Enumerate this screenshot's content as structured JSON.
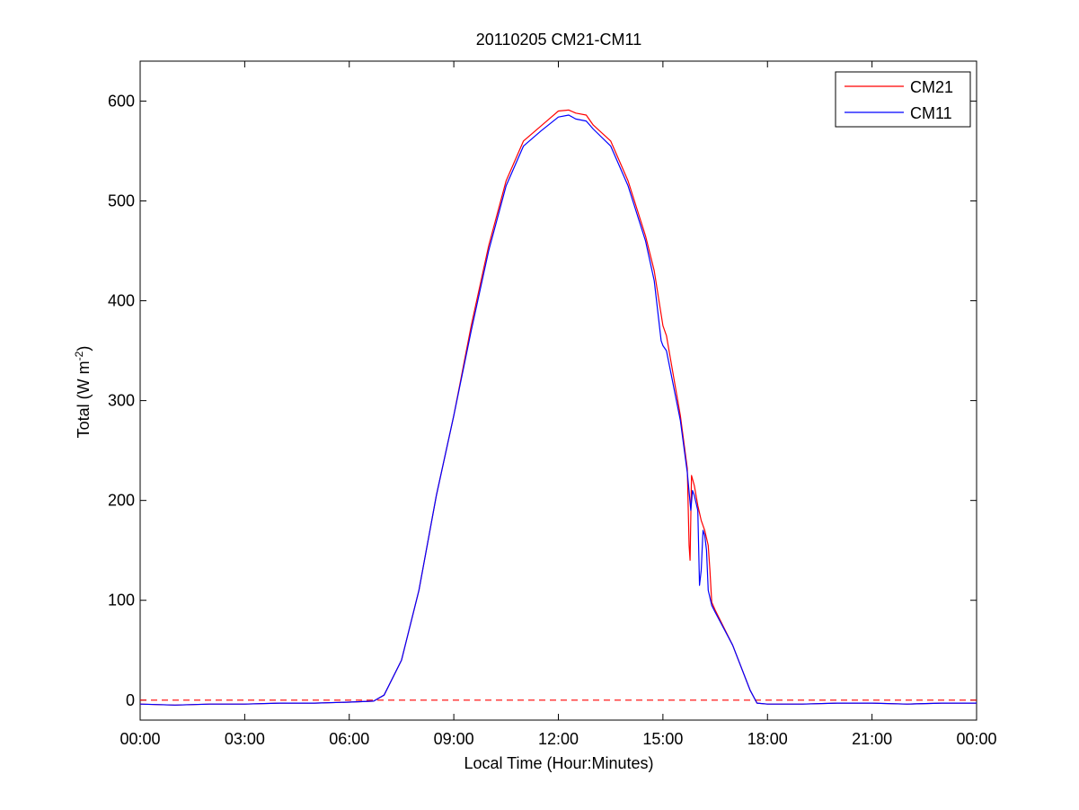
{
  "chart_data": {
    "type": "line",
    "title": "20110205 CM21-CM11",
    "xlabel": "Local Time (Hour:Minutes)",
    "ylabel_main": "Total (W m",
    "ylabel_sup": "-2",
    "ylabel_close": ")",
    "x_unit": "hours",
    "xlim": [
      0,
      24
    ],
    "ylim": [
      -20,
      640
    ],
    "x_ticks": [
      0,
      3,
      6,
      9,
      12,
      15,
      18,
      21,
      24
    ],
    "x_tick_labels": [
      "00:00",
      "03:00",
      "06:00",
      "09:00",
      "12:00",
      "15:00",
      "18:00",
      "21:00",
      "00:00"
    ],
    "y_ticks": [
      0,
      100,
      200,
      300,
      400,
      500,
      600
    ],
    "y_tick_labels": [
      "0",
      "100",
      "200",
      "300",
      "400",
      "500",
      "600"
    ],
    "grid": false,
    "legend_position": "top-right",
    "reference_line": {
      "y": 0,
      "color": "#ff0000",
      "style": "dashed"
    },
    "series": [
      {
        "name": "CM21",
        "color": "#ff0000",
        "points": [
          [
            0,
            -4
          ],
          [
            1,
            -5
          ],
          [
            2,
            -4
          ],
          [
            3,
            -4
          ],
          [
            4,
            -3
          ],
          [
            5,
            -3
          ],
          [
            6,
            -2
          ],
          [
            6.7,
            -1
          ],
          [
            7,
            5
          ],
          [
            7.5,
            40
          ],
          [
            8,
            110
          ],
          [
            8.5,
            205
          ],
          [
            9,
            285
          ],
          [
            9.5,
            375
          ],
          [
            10,
            455
          ],
          [
            10.5,
            520
          ],
          [
            11,
            560
          ],
          [
            11.5,
            575
          ],
          [
            12,
            590
          ],
          [
            12.3,
            591
          ],
          [
            12.5,
            588
          ],
          [
            12.8,
            586
          ],
          [
            13,
            576
          ],
          [
            13.5,
            560
          ],
          [
            14,
            520
          ],
          [
            14.5,
            465
          ],
          [
            14.75,
            430
          ],
          [
            15,
            375
          ],
          [
            15.1,
            365
          ],
          [
            15.5,
            285
          ],
          [
            15.7,
            232
          ],
          [
            15.75,
            155
          ],
          [
            15.78,
            140
          ],
          [
            15.82,
            225
          ],
          [
            15.9,
            215
          ],
          [
            16,
            195
          ],
          [
            16.1,
            180
          ],
          [
            16.2,
            170
          ],
          [
            16.3,
            155
          ],
          [
            16.35,
            130
          ],
          [
            16.4,
            98
          ],
          [
            16.5,
            90
          ],
          [
            17,
            55
          ],
          [
            17.5,
            10
          ],
          [
            17.7,
            -3
          ],
          [
            18,
            -4
          ],
          [
            19,
            -4
          ],
          [
            20,
            -3
          ],
          [
            21,
            -3
          ],
          [
            22,
            -4
          ],
          [
            23,
            -3
          ],
          [
            24,
            -3
          ]
        ]
      },
      {
        "name": "CM11",
        "color": "#0000ff",
        "points": [
          [
            0,
            -4
          ],
          [
            1,
            -5
          ],
          [
            2,
            -4
          ],
          [
            3,
            -4
          ],
          [
            4,
            -3
          ],
          [
            5,
            -3
          ],
          [
            6,
            -2
          ],
          [
            6.7,
            -1
          ],
          [
            7,
            5
          ],
          [
            7.5,
            40
          ],
          [
            8,
            110
          ],
          [
            8.5,
            205
          ],
          [
            9,
            285
          ],
          [
            9.5,
            370
          ],
          [
            10,
            450
          ],
          [
            10.5,
            515
          ],
          [
            11,
            555
          ],
          [
            11.5,
            570
          ],
          [
            12,
            584
          ],
          [
            12.3,
            586
          ],
          [
            12.5,
            582
          ],
          [
            12.8,
            580
          ],
          [
            13,
            572
          ],
          [
            13.5,
            555
          ],
          [
            14,
            515
          ],
          [
            14.5,
            460
          ],
          [
            14.75,
            420
          ],
          [
            14.95,
            360
          ],
          [
            15,
            355
          ],
          [
            15.1,
            350
          ],
          [
            15.5,
            280
          ],
          [
            15.7,
            228
          ],
          [
            15.8,
            190
          ],
          [
            15.85,
            210
          ],
          [
            15.9,
            205
          ],
          [
            16,
            190
          ],
          [
            16.05,
            115
          ],
          [
            16.1,
            130
          ],
          [
            16.15,
            170
          ],
          [
            16.2,
            165
          ],
          [
            16.25,
            150
          ],
          [
            16.3,
            110
          ],
          [
            16.4,
            95
          ],
          [
            16.5,
            88
          ],
          [
            17,
            55
          ],
          [
            17.5,
            10
          ],
          [
            17.7,
            -3
          ],
          [
            18,
            -4
          ],
          [
            19,
            -4
          ],
          [
            20,
            -3
          ],
          [
            21,
            -3
          ],
          [
            22,
            -4
          ],
          [
            23,
            -3
          ],
          [
            24,
            -3
          ]
        ]
      }
    ]
  }
}
